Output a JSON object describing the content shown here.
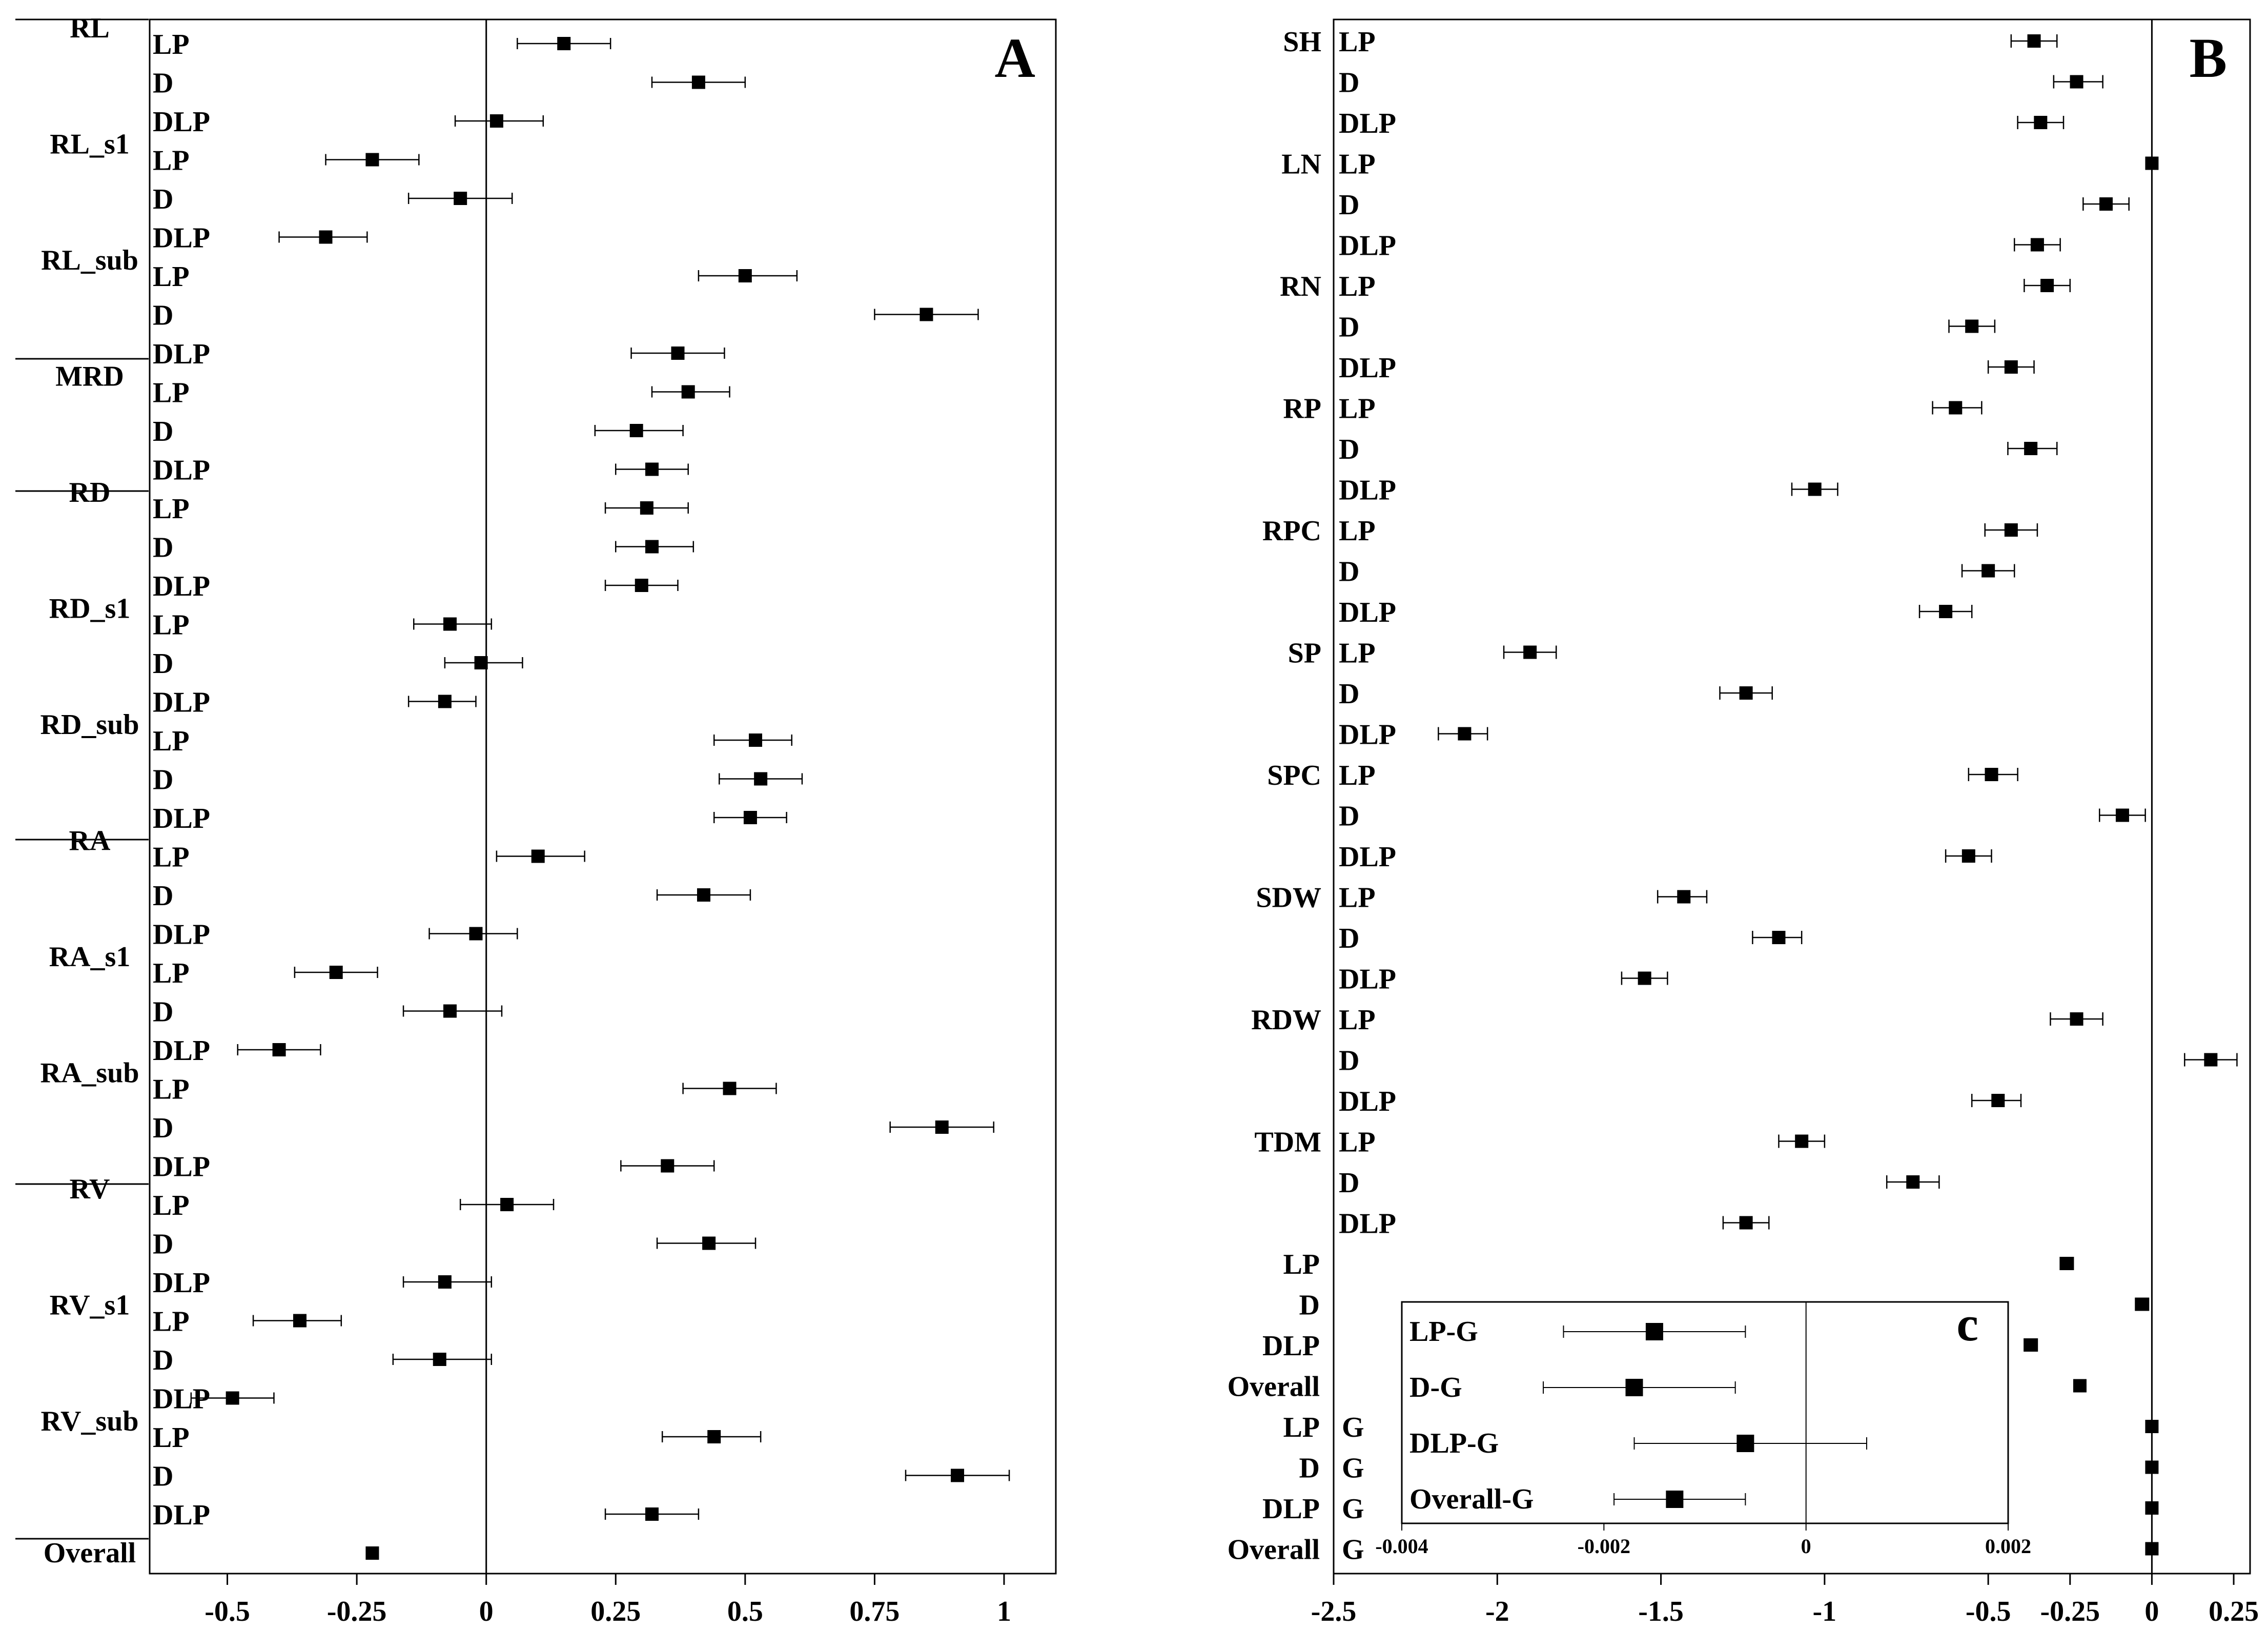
{
  "chart_data": [
    {
      "type": "forest",
      "panel_label": "A",
      "xlim": [
        -0.65,
        1.1
      ],
      "xticks": [
        -0.5,
        -0.25,
        0,
        0.25,
        0.5,
        0.75,
        1
      ],
      "xtick_labels": [
        "-0.5",
        "-0.25",
        "0",
        "0.25",
        "0.5",
        "0.75",
        "1"
      ],
      "reference_line": 0,
      "groups": [
        "RL",
        "RL_s1",
        "RL_sub",
        "MRD",
        "RD",
        "RD_s1",
        "RD_sub",
        "RA",
        "RA_s1",
        "RA_sub",
        "RV",
        "RV_s1",
        "RV_sub",
        "Overall"
      ],
      "rows": [
        {
          "group": "RL",
          "label": "LP",
          "est": 0.15,
          "lo": 0.06,
          "hi": 0.24
        },
        {
          "group": "",
          "label": "D",
          "est": 0.41,
          "lo": 0.32,
          "hi": 0.5
        },
        {
          "group": "",
          "label": "DLP",
          "est": 0.02,
          "lo": -0.06,
          "hi": 0.11
        },
        {
          "group": "RL_s1",
          "label": "LP",
          "est": -0.22,
          "lo": -0.31,
          "hi": -0.13
        },
        {
          "group": "",
          "label": "D",
          "est": -0.05,
          "lo": -0.15,
          "hi": 0.05
        },
        {
          "group": "",
          "label": "DLP",
          "est": -0.31,
          "lo": -0.4,
          "hi": -0.23
        },
        {
          "group": "RL_sub",
          "label": "LP",
          "est": 0.5,
          "lo": 0.41,
          "hi": 0.6
        },
        {
          "group": "",
          "label": "D",
          "est": 0.85,
          "lo": 0.75,
          "hi": 0.95
        },
        {
          "group": "",
          "label": "DLP",
          "est": 0.37,
          "lo": 0.28,
          "hi": 0.46
        },
        {
          "group": "MRD",
          "label": "LP",
          "est": 0.39,
          "lo": 0.32,
          "hi": 0.47
        },
        {
          "group": "",
          "label": "D",
          "est": 0.29,
          "lo": 0.21,
          "hi": 0.38
        },
        {
          "group": "",
          "label": "DLP",
          "est": 0.32,
          "lo": 0.25,
          "hi": 0.39
        },
        {
          "group": "RD",
          "label": "LP",
          "est": 0.31,
          "lo": 0.23,
          "hi": 0.39
        },
        {
          "group": "",
          "label": "D",
          "est": 0.32,
          "lo": 0.25,
          "hi": 0.4
        },
        {
          "group": "",
          "label": "DLP",
          "est": 0.3,
          "lo": 0.23,
          "hi": 0.37
        },
        {
          "group": "RD_s1",
          "label": "LP",
          "est": -0.07,
          "lo": -0.14,
          "hi": 0.01
        },
        {
          "group": "",
          "label": "D",
          "est": -0.01,
          "lo": -0.08,
          "hi": 0.07
        },
        {
          "group": "",
          "label": "DLP",
          "est": -0.08,
          "lo": -0.15,
          "hi": -0.02
        },
        {
          "group": "RD_sub",
          "label": "LP",
          "est": 0.52,
          "lo": 0.44,
          "hi": 0.59
        },
        {
          "group": "",
          "label": "D",
          "est": 0.53,
          "lo": 0.45,
          "hi": 0.61
        },
        {
          "group": "",
          "label": "DLP",
          "est": 0.51,
          "lo": 0.44,
          "hi": 0.58
        },
        {
          "group": "RA",
          "label": "LP",
          "est": 0.1,
          "lo": 0.02,
          "hi": 0.19
        },
        {
          "group": "",
          "label": "D",
          "est": 0.42,
          "lo": 0.33,
          "hi": 0.51
        },
        {
          "group": "",
          "label": "DLP",
          "est": -0.02,
          "lo": -0.11,
          "hi": 0.06
        },
        {
          "group": "RA_s1",
          "label": "LP",
          "est": -0.29,
          "lo": -0.37,
          "hi": -0.21
        },
        {
          "group": "",
          "label": "D",
          "est": -0.07,
          "lo": -0.16,
          "hi": 0.03
        },
        {
          "group": "",
          "label": "DLP",
          "est": -0.4,
          "lo": -0.48,
          "hi": -0.32
        },
        {
          "group": "RA_sub",
          "label": "LP",
          "est": 0.47,
          "lo": 0.38,
          "hi": 0.56
        },
        {
          "group": "",
          "label": "D",
          "est": 0.88,
          "lo": 0.78,
          "hi": 0.98
        },
        {
          "group": "",
          "label": "DLP",
          "est": 0.35,
          "lo": 0.26,
          "hi": 0.44
        },
        {
          "group": "RV",
          "label": "LP",
          "est": 0.04,
          "lo": -0.05,
          "hi": 0.13
        },
        {
          "group": "",
          "label": "D",
          "est": 0.43,
          "lo": 0.33,
          "hi": 0.52
        },
        {
          "group": "",
          "label": "DLP",
          "est": -0.08,
          "lo": -0.16,
          "hi": 0.01
        },
        {
          "group": "RV_s1",
          "label": "LP",
          "est": -0.36,
          "lo": -0.45,
          "hi": -0.28
        },
        {
          "group": "",
          "label": "D",
          "est": -0.09,
          "lo": -0.18,
          "hi": 0.01
        },
        {
          "group": "",
          "label": "DLP",
          "est": -0.49,
          "lo": -0.57,
          "hi": -0.41
        },
        {
          "group": "RV_sub",
          "label": "LP",
          "est": 0.44,
          "lo": 0.34,
          "hi": 0.53
        },
        {
          "group": "",
          "label": "D",
          "est": 0.91,
          "lo": 0.81,
          "hi": 1.01
        },
        {
          "group": "",
          "label": "DLP",
          "est": 0.32,
          "lo": 0.23,
          "hi": 0.41
        },
        {
          "group": "Overall",
          "label": "",
          "est": -0.22,
          "lo": -0.23,
          "hi": -0.21
        }
      ]
    },
    {
      "type": "forest",
      "panel_label": "B",
      "xlim": [
        -2.5,
        0.3
      ],
      "xticks": [
        -2.5,
        -2,
        -1.5,
        -1,
        -0.5,
        -0.25,
        0,
        0.25
      ],
      "xtick_labels": [
        "-2.5",
        "-2",
        "-1.5",
        "-1",
        "-0.5",
        "-0.25",
        "0",
        "0.25"
      ],
      "reference_line": 0,
      "rows": [
        {
          "group": "SH",
          "label": "LP",
          "est": -0.36,
          "lo": -0.43,
          "hi": -0.29
        },
        {
          "group": "",
          "label": "D",
          "est": -0.23,
          "lo": -0.3,
          "hi": -0.15
        },
        {
          "group": "",
          "label": "DLP",
          "est": -0.34,
          "lo": -0.41,
          "hi": -0.27
        },
        {
          "group": "LN",
          "label": "LP",
          "est": 0.0,
          "lo": -0.01,
          "hi": 0.01
        },
        {
          "group": "",
          "label": "D",
          "est": -0.14,
          "lo": -0.21,
          "hi": -0.07
        },
        {
          "group": "",
          "label": "DLP",
          "est": -0.35,
          "lo": -0.42,
          "hi": -0.28
        },
        {
          "group": "RN",
          "label": "LP",
          "est": -0.32,
          "lo": -0.39,
          "hi": -0.25
        },
        {
          "group": "",
          "label": "D",
          "est": -0.55,
          "lo": -0.62,
          "hi": -0.48
        },
        {
          "group": "",
          "label": "DLP",
          "est": -0.43,
          "lo": -0.5,
          "hi": -0.36
        },
        {
          "group": "RP",
          "label": "LP",
          "est": -0.6,
          "lo": -0.67,
          "hi": -0.52
        },
        {
          "group": "",
          "label": "D",
          "est": -0.37,
          "lo": -0.44,
          "hi": -0.29
        },
        {
          "group": "",
          "label": "DLP",
          "est": -1.03,
          "lo": -1.1,
          "hi": -0.96
        },
        {
          "group": "RPC",
          "label": "LP",
          "est": -0.43,
          "lo": -0.51,
          "hi": -0.35
        },
        {
          "group": "",
          "label": "D",
          "est": -0.5,
          "lo": -0.58,
          "hi": -0.42
        },
        {
          "group": "",
          "label": "DLP",
          "est": -0.63,
          "lo": -0.71,
          "hi": -0.55
        },
        {
          "group": "SP",
          "label": "LP",
          "est": -1.9,
          "lo": -1.98,
          "hi": -1.82
        },
        {
          "group": "",
          "label": "D",
          "est": -1.24,
          "lo": -1.32,
          "hi": -1.16
        },
        {
          "group": "",
          "label": "DLP",
          "est": -2.1,
          "lo": -2.18,
          "hi": -2.03
        },
        {
          "group": "SPC",
          "label": "LP",
          "est": -0.49,
          "lo": -0.56,
          "hi": -0.41
        },
        {
          "group": "",
          "label": "D",
          "est": -0.09,
          "lo": -0.16,
          "hi": -0.02
        },
        {
          "group": "",
          "label": "DLP",
          "est": -0.56,
          "lo": -0.63,
          "hi": -0.49
        },
        {
          "group": "SDW",
          "label": "LP",
          "est": -1.43,
          "lo": -1.51,
          "hi": -1.36
        },
        {
          "group": "",
          "label": "D",
          "est": -1.14,
          "lo": -1.22,
          "hi": -1.07
        },
        {
          "group": "",
          "label": "DLP",
          "est": -1.55,
          "lo": -1.62,
          "hi": -1.48
        },
        {
          "group": "RDW",
          "label": "LP",
          "est": -0.23,
          "lo": -0.31,
          "hi": -0.15
        },
        {
          "group": "",
          "label": "D",
          "est": 0.18,
          "lo": 0.1,
          "hi": 0.26
        },
        {
          "group": "",
          "label": "DLP",
          "est": -0.47,
          "lo": -0.55,
          "hi": -0.4
        },
        {
          "group": "TDM",
          "label": "LP",
          "est": -1.07,
          "lo": -1.14,
          "hi": -1.0
        },
        {
          "group": "",
          "label": "D",
          "est": -0.73,
          "lo": -0.81,
          "hi": -0.65
        },
        {
          "group": "",
          "label": "DLP",
          "est": -1.24,
          "lo": -1.31,
          "hi": -1.17
        },
        {
          "group": "",
          "label": "LP",
          "est": -0.26,
          "lo": -0.28,
          "hi": -0.24
        },
        {
          "group": "",
          "label": "D",
          "est": -0.03,
          "lo": -0.05,
          "hi": -0.01
        },
        {
          "group": "",
          "label": "DLP",
          "est": -0.37,
          "lo": -0.39,
          "hi": -0.35
        },
        {
          "group": "",
          "label": "Overall",
          "est": -0.22,
          "lo": -0.23,
          "hi": -0.21
        },
        {
          "group": "LP",
          "label": "G",
          "est": 0.0,
          "lo": -0.005,
          "hi": 0.005
        },
        {
          "group": "D",
          "label": "G",
          "est": 0.0,
          "lo": -0.005,
          "hi": 0.005
        },
        {
          "group": "DLP",
          "label": "G",
          "est": 0.0,
          "lo": -0.005,
          "hi": 0.005
        },
        {
          "group": "Overall",
          "label": "G",
          "est": 0.0,
          "lo": -0.005,
          "hi": 0.005
        }
      ]
    },
    {
      "type": "forest",
      "panel_label": "c",
      "xlim": [
        -0.004,
        0.002
      ],
      "xticks": [
        -0.004,
        -0.002,
        0,
        0.002
      ],
      "xtick_labels": [
        "-0.004",
        "-0.002",
        "0",
        "0.002"
      ],
      "reference_line": 0,
      "rows": [
        {
          "label": "LP-G",
          "est": -0.0015,
          "lo": -0.0024,
          "hi": -0.0006
        },
        {
          "label": "D-G",
          "est": -0.0017,
          "lo": -0.0026,
          "hi": -0.0007
        },
        {
          "label": "DLP-G",
          "est": -0.0006,
          "lo": -0.0017,
          "hi": 0.0006
        },
        {
          "label": "Overall-G",
          "est": -0.0013,
          "lo": -0.0019,
          "hi": -0.0006
        }
      ]
    }
  ]
}
